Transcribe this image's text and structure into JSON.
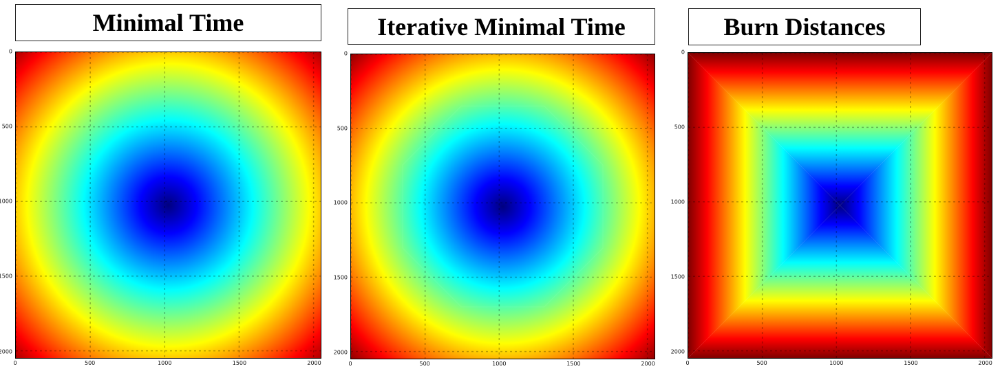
{
  "figure": {
    "panels": [
      {
        "id": "minimal-time",
        "title": "Minimal Time"
      },
      {
        "id": "iterative-minimal-time",
        "title": "Iterative Minimal Time"
      },
      {
        "id": "burn-distances",
        "title": "Burn Distances"
      }
    ]
  },
  "chart_data": [
    {
      "type": "heatmap",
      "title": "Minimal Time",
      "colormap": "jet",
      "shape": "circular",
      "center": [
        1024,
        1024
      ],
      "xlim": [
        0,
        2048
      ],
      "ylim": [
        2048,
        0
      ],
      "xticks": [
        "0",
        "500",
        "1000",
        "1500",
        "2000"
      ],
      "yticks": [
        "0",
        "500",
        "1000",
        "1500",
        "2000"
      ],
      "grid": true
    },
    {
      "type": "heatmap",
      "title": "Iterative Minimal Time",
      "colormap": "jet",
      "shape": "octagonal",
      "center": [
        1024,
        1024
      ],
      "xlim": [
        0,
        2048
      ],
      "ylim": [
        2048,
        0
      ],
      "xticks": [
        "0",
        "500",
        "1000",
        "1500",
        "2000"
      ],
      "yticks": [
        "0",
        "500",
        "1000",
        "1500",
        "2000"
      ],
      "grid": true
    },
    {
      "type": "heatmap",
      "title": "Burn Distances",
      "colormap": "jet",
      "shape": "square",
      "center": [
        1024,
        1024
      ],
      "xlim": [
        0,
        2048
      ],
      "ylim": [
        2048,
        0
      ],
      "xticks": [
        "0",
        "500",
        "1000",
        "1500",
        "2000"
      ],
      "yticks": [
        "0",
        "500",
        "1000",
        "1500",
        "2000"
      ],
      "grid": true
    }
  ]
}
